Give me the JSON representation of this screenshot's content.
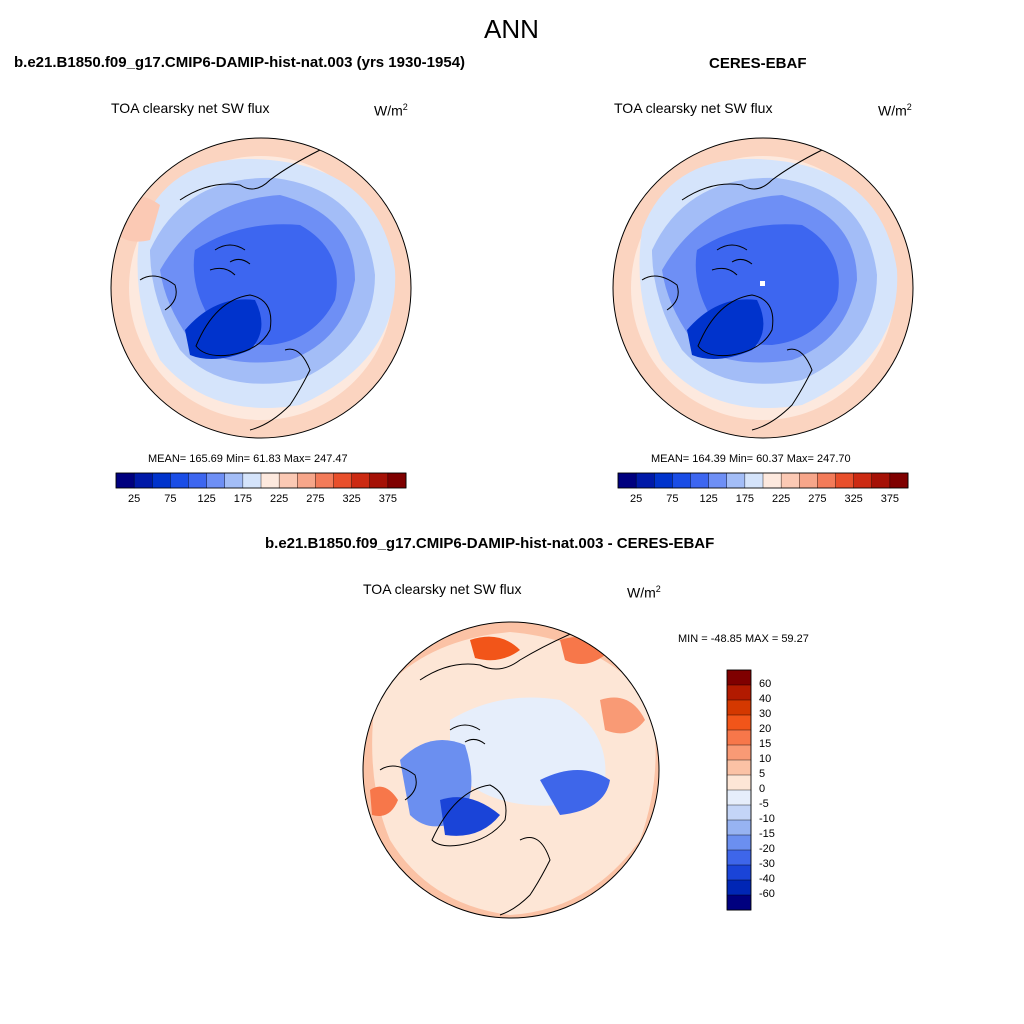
{
  "figure": {
    "title": "ANN",
    "left_panel": {
      "case_title": "b.e21.B1850.f09_g17.CMIP6-DAMIP-hist-nat.003 (yrs 1930-1954)",
      "variable": "TOA clearsky net SW flux",
      "units_base": "W/m",
      "units_exp": "2",
      "stats": "MEAN= 165.69  Min=  61.83  Max= 247.47"
    },
    "right_panel": {
      "case_title": "CERES-EBAF",
      "variable": "TOA clearsky net SW flux",
      "units_base": "W/m",
      "units_exp": "2",
      "stats": "MEAN= 164.39  Min=  60.37  Max= 247.70"
    },
    "diff_panel": {
      "case_title": "b.e21.B1850.f09_g17.CMIP6-DAMIP-hist-nat.003 - CERES-EBAF",
      "variable": "TOA clearsky net SW flux",
      "units_base": "W/m",
      "units_exp": "2",
      "stats": "MIN = -48.85 MAX =  59.27"
    },
    "field_colorbar": {
      "tick_labels": [
        "25",
        "75",
        "125",
        "175",
        "225",
        "275",
        "325",
        "375"
      ],
      "colors": [
        "#00007f",
        "#0019a8",
        "#0033cc",
        "#1a4de6",
        "#3d66f0",
        "#6e8ff5",
        "#a3bdf7",
        "#d5e4fb",
        "#fde9de",
        "#fbc9b4",
        "#f7a68a",
        "#f37b59",
        "#e84f2b",
        "#cc2a12",
        "#a51106",
        "#7f0000"
      ]
    },
    "diff_colorbar": {
      "tick_labels": [
        "60",
        "40",
        "30",
        "20",
        "15",
        "10",
        "5",
        "0",
        "-5",
        "-10",
        "-15",
        "-20",
        "-30",
        "-40",
        "-60"
      ],
      "colors": [
        "#7f0000",
        "#b21a00",
        "#d43800",
        "#f25519",
        "#f7774a",
        "#f99a75",
        "#fbc2a5",
        "#fde6d6",
        "#e6eefb",
        "#c4d5f7",
        "#97b3f2",
        "#6b8ff0",
        "#3e66ea",
        "#1a44d8",
        "#0026b5",
        "#00007f"
      ]
    }
  }
}
